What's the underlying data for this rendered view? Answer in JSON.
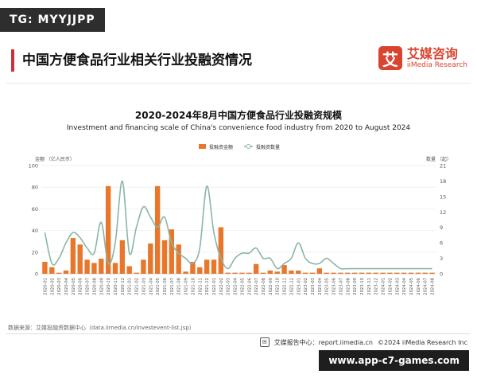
{
  "tag": "TG: MYYJJPP",
  "page_title": "中国方便食品行业相关行业投融资情况",
  "brand": {
    "logo_char": "艾",
    "name_cn": "艾媒咨询",
    "name_en": "iiMedia Research",
    "color": "#d9442f"
  },
  "source": "数据来源：艾媒投融资数据中心（data.iimedia.cn/investevent-list.jsp）",
  "footer": {
    "report": "艾媒报告中心：report.iimedia.cn",
    "copyright": "©2024  iiMedia Research Inc"
  },
  "watermark": "www.app-c7-games.com",
  "chart_data": {
    "type": "bar",
    "title": "2020-2024年8月中国方便食品行业投融资规模",
    "subtitle": "Investment and financing scale of China's convenience food industry from 2020 to August 2024",
    "left_axis_label": "金额  （亿人民币）",
    "right_axis_label": "数量  （起）",
    "legend": [
      "投融资金额",
      "投融资数量"
    ],
    "legend_position": "top-center",
    "colors": {
      "bar": "#e8762b",
      "line": "#8ab6a7"
    },
    "ylim_left": [
      0,
      100
    ],
    "left_ticks": [
      0,
      20,
      40,
      60,
      80,
      100
    ],
    "ylim_right": [
      0,
      21
    ],
    "right_ticks": [
      0,
      3,
      6,
      9,
      12,
      15,
      18,
      21
    ],
    "categories": [
      "2020-01",
      "2020-02",
      "2020-03",
      "2020-04",
      "2020-05",
      "2020-06",
      "2020-07",
      "2020-08",
      "2020-09",
      "2020-10",
      "2020-11",
      "2020-12",
      "2021-01",
      "2021-02",
      "2021-03",
      "2021-04",
      "2021-05",
      "2021-06",
      "2021-07",
      "2021-08",
      "2021-09",
      "2021-10",
      "2021-11",
      "2021-12",
      "2022-01",
      "2022-02",
      "2022-03",
      "2022-04",
      "2022-05",
      "2022-06",
      "2022-07",
      "2022-08",
      "2022-09",
      "2022-10",
      "2022-11",
      "2022-12",
      "2023-01",
      "2023-02",
      "2023-03",
      "2023-04",
      "2023-05",
      "2023-06",
      "2023-07",
      "2023-08",
      "2023-09",
      "2023-10",
      "2023-11",
      "2023-12",
      "2024-01",
      "2024-02",
      "2024-03",
      "2024-04",
      "2024-05",
      "2024-06",
      "2024-07",
      "2024-08"
    ],
    "series": [
      {
        "name": "投融资金额",
        "kind": "bar",
        "values": [
          11,
          6,
          1,
          3,
          33,
          27,
          13,
          10,
          14,
          81,
          10,
          31,
          7,
          1,
          13,
          28,
          81,
          31,
          41,
          27,
          2,
          11,
          6,
          13,
          13,
          43,
          1,
          1,
          1,
          1,
          9,
          1,
          3,
          2,
          8,
          3,
          3,
          1,
          1,
          5,
          1,
          1,
          1,
          1,
          1,
          1,
          1,
          1,
          1,
          1,
          1,
          1,
          1,
          1,
          1,
          1
        ]
      },
      {
        "name": "投融资数量",
        "kind": "line",
        "values": [
          8,
          2,
          3,
          6,
          8,
          7,
          5,
          4,
          10,
          2,
          6,
          18,
          4,
          9,
          13,
          11,
          9,
          11,
          6,
          4,
          3,
          2,
          5,
          17,
          8,
          3,
          1,
          3,
          4,
          4,
          5,
          3,
          3,
          1,
          2,
          3,
          6,
          3,
          2,
          2,
          3,
          2,
          1,
          1,
          1,
          1,
          1,
          1,
          1,
          1,
          1,
          1,
          1,
          1,
          1,
          1
        ]
      }
    ]
  }
}
